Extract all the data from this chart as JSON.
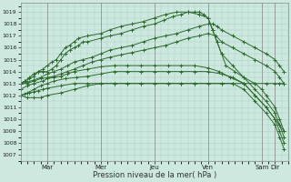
{
  "bg_color": "#cde8df",
  "grid_color": "#aacfc4",
  "line_color": "#2d6a2d",
  "markersize": 2.5,
  "linewidth": 0.7,
  "xlabel": "Pression niveau de la mer( hPa )",
  "ylim": [
    1006.5,
    1019.8
  ],
  "yticks": [
    1007,
    1008,
    1009,
    1010,
    1011,
    1012,
    1013,
    1014,
    1015,
    1016,
    1017,
    1018,
    1019
  ],
  "xlim": [
    0,
    240
  ],
  "x_major_positions": [
    24,
    72,
    120,
    168,
    216,
    228
  ],
  "x_major_labels": [
    "Mar",
    "Mer",
    "Jeu",
    "Ven",
    "Sam",
    "Dir"
  ],
  "series": [
    {
      "x": [
        0,
        4,
        8,
        12,
        16,
        20,
        24,
        28,
        32,
        36,
        40,
        44,
        48,
        52,
        56,
        60,
        72,
        80,
        90,
        100,
        110,
        120,
        128,
        136,
        144,
        150,
        156,
        160,
        164,
        168,
        172,
        176,
        180,
        184,
        192,
        200,
        210,
        216,
        220,
        228,
        232,
        236
      ],
      "y": [
        1013,
        1013.2,
        1013.5,
        1013.8,
        1014,
        1014,
        1014,
        1014.2,
        1014.5,
        1015,
        1015.5,
        1015.8,
        1016,
        1016.2,
        1016.5,
        1016.5,
        1016.8,
        1017,
        1017.2,
        1017.5,
        1017.8,
        1018,
        1018.3,
        1018.6,
        1018.8,
        1019,
        1019,
        1019,
        1018.8,
        1018.5,
        1017.5,
        1016.5,
        1015.5,
        1014.5,
        1014,
        1013.5,
        1013,
        1012.5,
        1012,
        1011,
        1010,
        1009
      ]
    },
    {
      "x": [
        0,
        4,
        8,
        12,
        16,
        20,
        24,
        28,
        32,
        36,
        40,
        44,
        48,
        52,
        60,
        72,
        80,
        90,
        100,
        110,
        120,
        130,
        140,
        150,
        160,
        168,
        172,
        176,
        180,
        190,
        200,
        210,
        220,
        228,
        232,
        236
      ],
      "y": [
        1013,
        1013.2,
        1013.4,
        1013.6,
        1014,
        1014.2,
        1014.5,
        1014.8,
        1015,
        1015.5,
        1016,
        1016.2,
        1016.5,
        1016.8,
        1017,
        1017.2,
        1017.5,
        1017.8,
        1018,
        1018.2,
        1018.5,
        1018.8,
        1019,
        1019,
        1018.8,
        1018.5,
        1017.5,
        1016.5,
        1015.5,
        1014.5,
        1013.5,
        1012.5,
        1011.5,
        1010.5,
        1009.5,
        1008.5
      ]
    },
    {
      "x": [
        0,
        6,
        12,
        18,
        24,
        30,
        36,
        42,
        48,
        56,
        64,
        72,
        80,
        90,
        100,
        110,
        120,
        130,
        140,
        150,
        160,
        168,
        172,
        176,
        180,
        190,
        200,
        210,
        220,
        228,
        232,
        236
      ],
      "y": [
        1013,
        1013.1,
        1013.3,
        1013.5,
        1013.8,
        1014,
        1014.2,
        1014.5,
        1014.8,
        1015,
        1015.2,
        1015.5,
        1015.8,
        1016,
        1016.2,
        1016.5,
        1016.8,
        1017,
        1017.2,
        1017.5,
        1017.8,
        1018,
        1018,
        1017.8,
        1017.5,
        1017,
        1016.5,
        1016,
        1015.5,
        1015,
        1014.5,
        1014
      ]
    },
    {
      "x": [
        0,
        6,
        12,
        18,
        24,
        30,
        36,
        42,
        48,
        56,
        64,
        72,
        80,
        90,
        100,
        110,
        120,
        130,
        140,
        150,
        160,
        168,
        175,
        180,
        190,
        200,
        210,
        220,
        228,
        232,
        236
      ],
      "y": [
        1013,
        1013,
        1013.2,
        1013.4,
        1013.5,
        1013.6,
        1013.8,
        1014,
        1014.2,
        1014.5,
        1014.8,
        1015,
        1015.2,
        1015.4,
        1015.6,
        1015.8,
        1016,
        1016.2,
        1016.5,
        1016.8,
        1017,
        1017.2,
        1017,
        1016.5,
        1016,
        1015.5,
        1015,
        1014.5,
        1014,
        1013.5,
        1013
      ]
    },
    {
      "x": [
        0,
        6,
        12,
        20,
        24,
        30,
        36,
        42,
        48,
        60,
        72,
        84,
        96,
        108,
        120,
        132,
        144,
        156,
        168,
        178,
        188,
        200,
        210,
        220,
        228,
        232,
        236
      ],
      "y": [
        1012.5,
        1012.8,
        1013,
        1013.2,
        1013.4,
        1013.5,
        1013.6,
        1013.8,
        1014,
        1014.2,
        1014.4,
        1014.5,
        1014.5,
        1014.5,
        1014.5,
        1014.5,
        1014.5,
        1014.5,
        1014.3,
        1014,
        1013.5,
        1013,
        1012,
        1011,
        1010,
        1009,
        1008
      ]
    },
    {
      "x": [
        0,
        6,
        12,
        18,
        24,
        30,
        40,
        50,
        60,
        72,
        84,
        96,
        108,
        120,
        132,
        144,
        156,
        168,
        180,
        190,
        200,
        210,
        220,
        228,
        232,
        236
      ],
      "y": [
        1012,
        1012.2,
        1012.5,
        1012.8,
        1013,
        1013.2,
        1013.4,
        1013.5,
        1013.6,
        1013.8,
        1014,
        1014,
        1014,
        1014,
        1014,
        1014,
        1014,
        1014,
        1013.8,
        1013.5,
        1013,
        1012,
        1011,
        1010,
        1009.5,
        1009
      ]
    },
    {
      "x": [
        0,
        4,
        8,
        12,
        16,
        20,
        24,
        36,
        48,
        60,
        72,
        84,
        96,
        108,
        120,
        132,
        144,
        156,
        168,
        180,
        190,
        200,
        210,
        220,
        228,
        232,
        236
      ],
      "y": [
        1012,
        1012.1,
        1012.2,
        1012.3,
        1012.4,
        1012.5,
        1012.6,
        1012.8,
        1013,
        1013,
        1013,
        1013,
        1013,
        1013,
        1013,
        1013,
        1013,
        1013,
        1013,
        1013,
        1013,
        1013,
        1013,
        1013,
        1013,
        1013,
        1013
      ]
    },
    {
      "x": [
        0,
        6,
        12,
        18,
        24,
        36,
        48,
        60,
        72,
        84,
        96,
        108,
        120,
        132,
        144,
        156,
        168,
        180,
        190,
        200,
        210,
        220,
        228,
        232,
        236
      ],
      "y": [
        1012,
        1011.8,
        1011.8,
        1011.8,
        1012,
        1012.2,
        1012.5,
        1012.8,
        1013,
        1013,
        1013,
        1013,
        1013,
        1013,
        1013,
        1013,
        1013,
        1013,
        1013,
        1012.5,
        1011.5,
        1010.5,
        1009.5,
        1008.5,
        1007.5
      ]
    }
  ]
}
